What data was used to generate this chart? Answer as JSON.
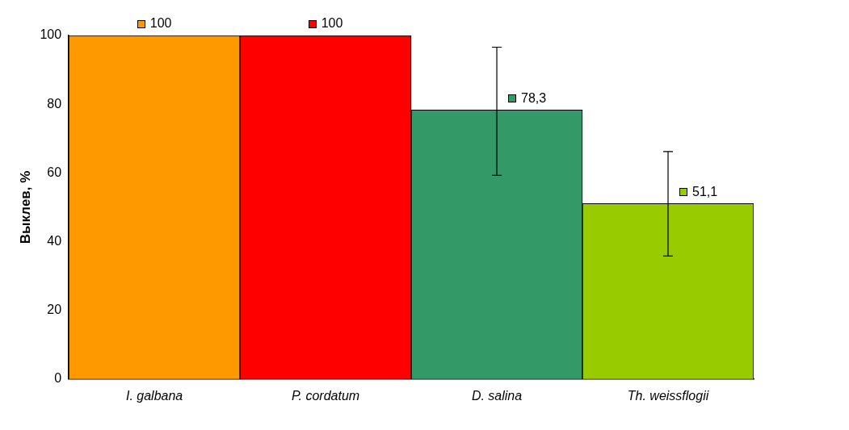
{
  "chart_data": {
    "type": "bar",
    "ylabel": "Выклев, %",
    "categories": [
      "I. galbana",
      "P. cordatum",
      "D. salina",
      "Th. weissflogii"
    ],
    "values": [
      100,
      100,
      78.3,
      51.1
    ],
    "colors": [
      "#ff9900",
      "#ff0000",
      "#339966",
      "#99cc00"
    ],
    "errors": [
      null,
      null,
      [
        59.3,
        96.6
      ],
      [
        35.8,
        66.2
      ]
    ],
    "value_labels": [
      "100",
      "100",
      "78,3",
      "51,1"
    ],
    "ylim": [
      0,
      100
    ],
    "yticks": [
      0,
      20,
      40,
      60,
      80,
      100
    ],
    "grid": false,
    "legend": false
  }
}
